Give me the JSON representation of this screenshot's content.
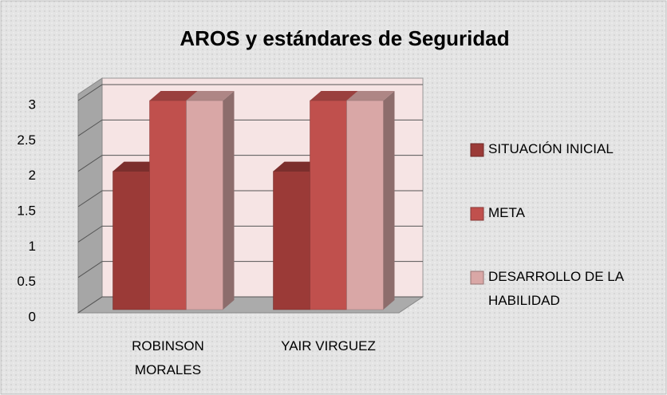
{
  "chart_data": {
    "type": "bar3d",
    "title": "AROS y estándares de Seguridad",
    "categories": [
      "ROBINSON MORALES",
      "YAIR VIRGUEZ"
    ],
    "series": [
      {
        "name": "SITUACIÓN INICIAL",
        "color": "#9b3a37",
        "values": [
          2,
          2
        ]
      },
      {
        "name": "META",
        "color": "#c0504d",
        "values": [
          3,
          3
        ]
      },
      {
        "name": "DESARROLLO DE LA HABILIDAD",
        "color": "#d9a7a6",
        "values": [
          3,
          3
        ]
      }
    ],
    "ylim": [
      0,
      3
    ],
    "yticks": [
      0,
      0.5,
      1,
      1.5,
      2,
      2.5,
      3
    ],
    "grid": true,
    "legend": "right"
  }
}
